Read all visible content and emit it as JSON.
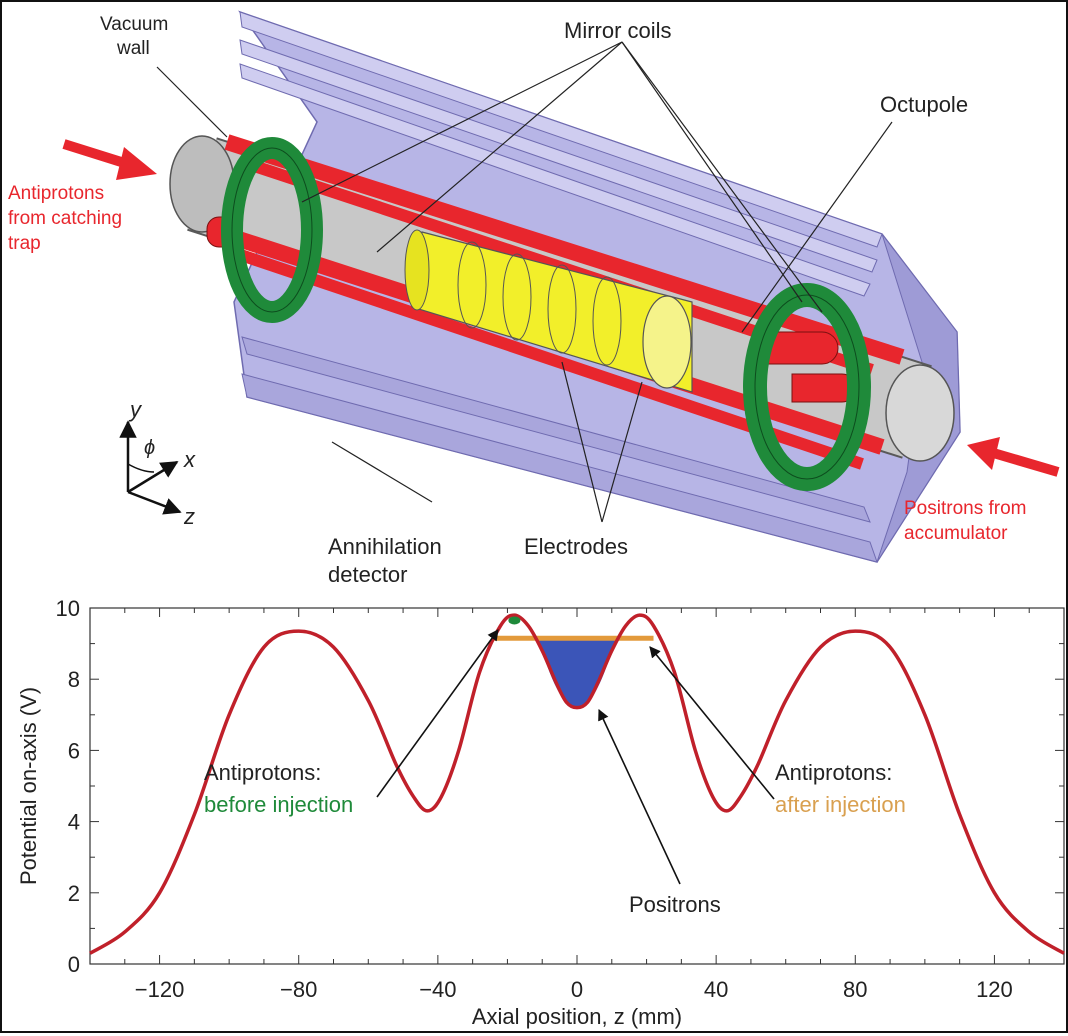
{
  "diagram": {
    "labels": {
      "vacuum_wall_1": "Vacuum",
      "vacuum_wall_2": "wall",
      "mirror_coils": "Mirror coils",
      "octupole": "Octupole",
      "antiprotons_1": "Antiprotons",
      "antiprotons_2": "from catching",
      "antiprotons_3": "trap",
      "positrons_1": "Positrons from",
      "positrons_2": "accumulator",
      "annihilation_1": "Annihilation",
      "annihilation_2": "detector",
      "electrodes": "Electrodes",
      "axis_y": "y",
      "axis_x": "x",
      "axis_z": "z",
      "axis_phi": "ϕ"
    },
    "colors": {
      "detector": "#b7b5e6",
      "tube": "#c8c8c8",
      "octupole": "#e8262d",
      "electrodes": "#f2ef2a",
      "mirror_coils": "#1f8a3a",
      "beam_arrows": "#e8262d"
    }
  },
  "chart_data": {
    "type": "line",
    "title": "",
    "xlabel": "Axial position, z (mm)",
    "ylabel": "Potential on-axis (V)",
    "xlim": [
      -140,
      140
    ],
    "ylim": [
      0,
      10
    ],
    "xticks": [
      "-120",
      "-80",
      "-40",
      "0",
      "40",
      "80",
      "120"
    ],
    "xtick_values": [
      -120,
      -80,
      -40,
      0,
      40,
      80,
      120
    ],
    "yticks": [
      "0",
      "2",
      "4",
      "6",
      "8",
      "10"
    ],
    "ytick_values": [
      0,
      2,
      4,
      6,
      8,
      10
    ],
    "grid": false,
    "series": [
      {
        "color": "#c0202a",
        "x": [
          -140,
          -130,
          -120,
          -110,
          -100,
          -90,
          -80,
          -70,
          -60,
          -52,
          -47,
          -43,
          -39,
          -34,
          -28,
          -22,
          -18,
          -14,
          -10,
          -6,
          -3,
          0,
          3,
          6,
          10,
          14,
          18,
          22,
          28,
          34,
          39,
          43,
          47,
          52,
          60,
          70,
          80,
          90,
          100,
          110,
          120,
          130,
          140
        ],
        "y": [
          0.3,
          0.9,
          2.0,
          4.2,
          7.0,
          8.9,
          9.35,
          8.9,
          7.4,
          5.6,
          4.7,
          4.3,
          4.7,
          6.0,
          8.2,
          9.5,
          9.8,
          9.5,
          8.8,
          7.9,
          7.35,
          7.2,
          7.35,
          7.9,
          8.8,
          9.5,
          9.8,
          9.5,
          8.2,
          6.0,
          4.7,
          4.3,
          4.7,
          5.6,
          7.4,
          8.9,
          9.35,
          8.9,
          7.0,
          4.2,
          2.0,
          0.9,
          0.3
        ]
      }
    ],
    "annotations": {
      "antiprotons_before_1": "Antiprotons:",
      "antiprotons_before_2": "before injection",
      "antiprotons_after_1": "Antiprotons:",
      "antiprotons_after_2": "after injection",
      "positrons": "Positrons"
    },
    "markers": {
      "before_injection": {
        "z": -18,
        "V": 9.65,
        "color": "#1f8a3a"
      },
      "after_injection": {
        "z_range": [
          -24,
          22
        ],
        "V": 9.15,
        "color": "#e39a3b"
      },
      "positron_fill": {
        "V_top": 9.1,
        "color": "#3b55b8"
      }
    },
    "annotation_colors": {
      "before": "#1f8a3a",
      "after": "#d9a050",
      "text": "#222222"
    }
  }
}
